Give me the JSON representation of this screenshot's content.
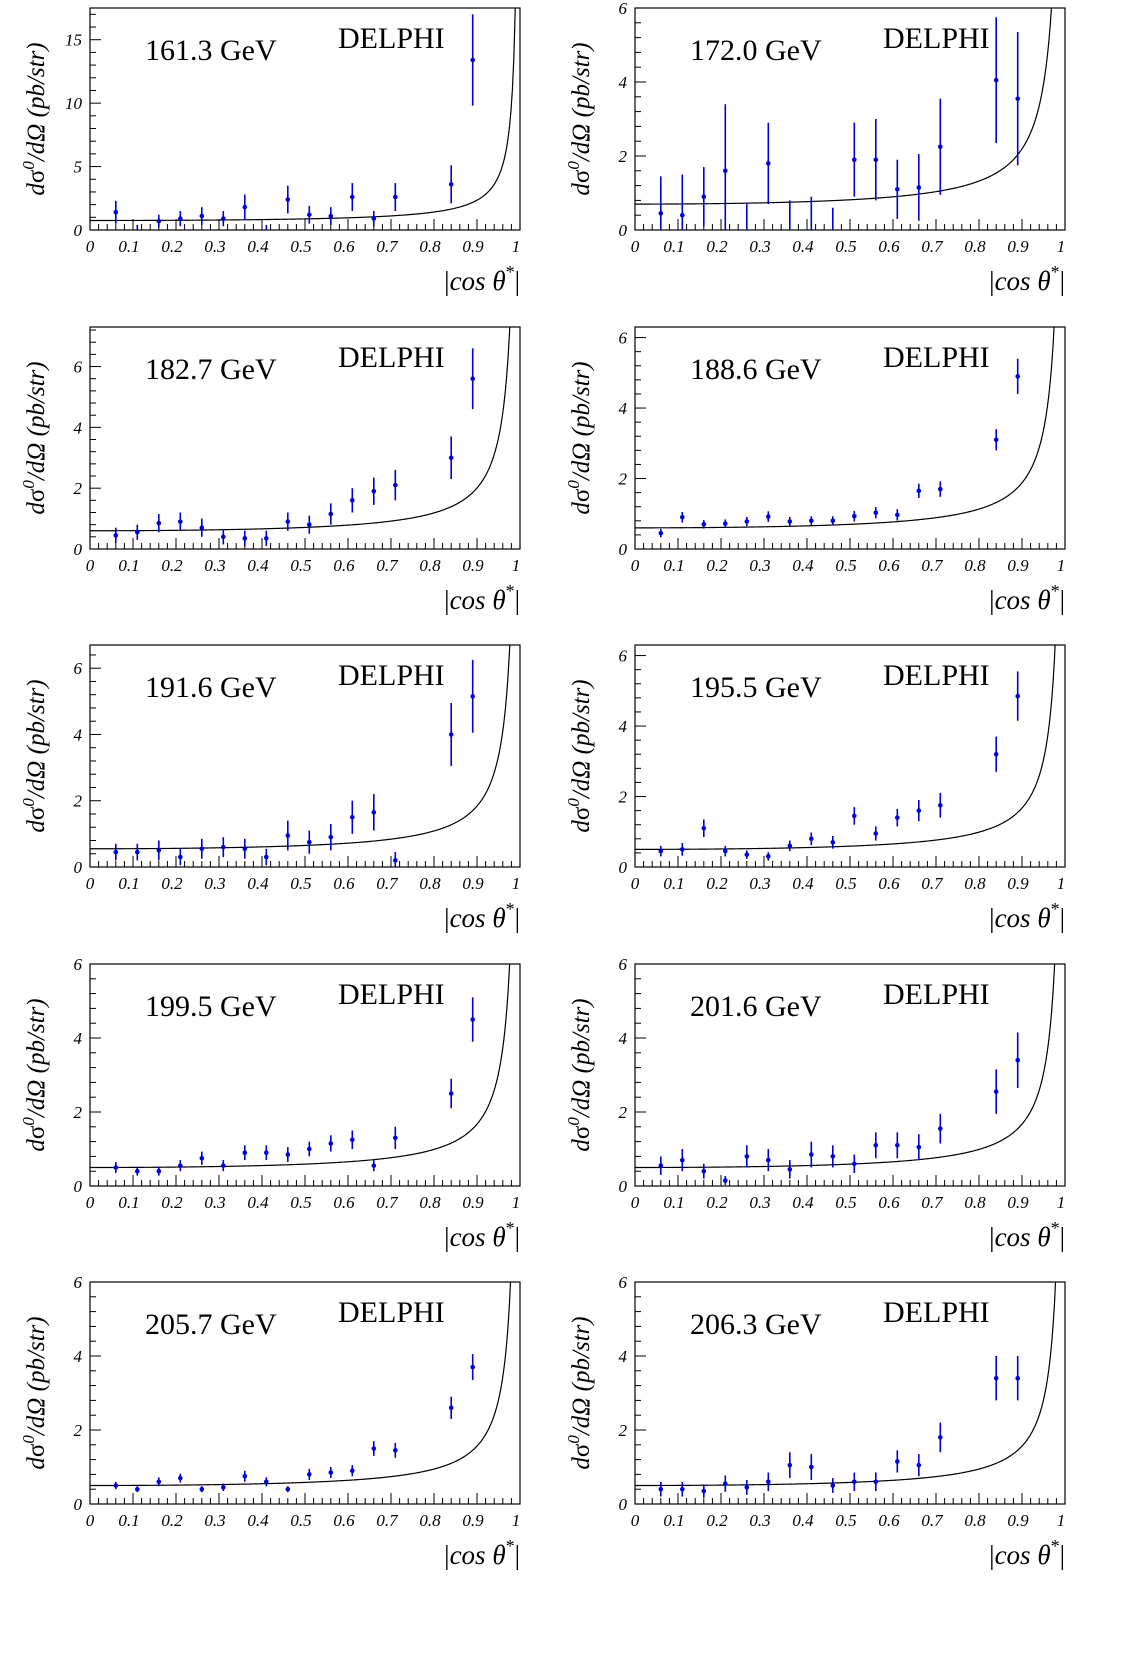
{
  "common": {
    "experiment": "DELPHI",
    "y_label_html": [
      "d",
      "σ",
      "0",
      "/dΩ (pb/str)"
    ],
    "x_label": [
      "|",
      "cos θ",
      "*",
      "|"
    ],
    "x_ticks": [
      "0",
      "0.1",
      "0.2",
      "0.3",
      "0.4",
      "0.5",
      "0.6",
      "0.7",
      "0.8",
      "0.9",
      "1"
    ],
    "point_color": "#0000dd",
    "curve_color": "#000000"
  },
  "chart_data": [
    {
      "type": "scatter",
      "title": "161.3 GeV",
      "label": "DELPHI",
      "xlabel": "|cos θ*|",
      "ylabel": "dσ0/dΩ (pb/str)",
      "xlim": [
        0,
        1
      ],
      "ylim": [
        0,
        17.5
      ],
      "y_ticks": [
        0,
        5,
        10,
        15
      ],
      "curve": {
        "a": 0.75,
        "b": 0.5
      },
      "series": [
        {
          "x": [
            0.06,
            0.11,
            0.16,
            0.21,
            0.26,
            0.31,
            0.36,
            0.41,
            0.46,
            0.51,
            0.56,
            0.61,
            0.66,
            0.71,
            0.84,
            0.89
          ],
          "y": [
            1.4,
            0.0,
            0.7,
            0.9,
            1.1,
            0.9,
            1.8,
            0.0,
            2.4,
            1.2,
            1.1,
            2.6,
            0.9,
            2.6,
            3.6,
            13.4
          ],
          "err": [
            0.9,
            0.4,
            0.5,
            0.6,
            0.7,
            0.6,
            1.0,
            0.4,
            1.1,
            0.7,
            0.7,
            1.1,
            0.6,
            1.1,
            1.5,
            3.6
          ]
        }
      ]
    },
    {
      "type": "scatter",
      "title": "172.0 GeV",
      "label": "DELPHI",
      "xlabel": "|cos θ*|",
      "ylabel": "dσ0/dΩ (pb/str)",
      "xlim": [
        0,
        1
      ],
      "ylim": [
        0,
        6
      ],
      "y_ticks": [
        0,
        2,
        4,
        6
      ],
      "curve": {
        "a": 0.7,
        "b": 0.5
      },
      "series": [
        {
          "x": [
            0.06,
            0.11,
            0.16,
            0.21,
            0.26,
            0.31,
            0.36,
            0.41,
            0.46,
            0.51,
            0.56,
            0.61,
            0.66,
            0.71,
            0.84,
            0.89
          ],
          "y": [
            0.45,
            0.4,
            0.9,
            1.6,
            0.0,
            1.8,
            0.0,
            0.0,
            0.0,
            1.9,
            1.9,
            1.1,
            1.15,
            2.25,
            4.05,
            3.55
          ],
          "err": [
            1.0,
            1.1,
            0.8,
            1.8,
            0.7,
            1.1,
            0.8,
            0.9,
            0.6,
            1.0,
            1.1,
            0.8,
            0.9,
            1.3,
            1.7,
            1.8
          ]
        }
      ]
    },
    {
      "type": "scatter",
      "title": "182.7 GeV",
      "label": "DELPHI",
      "xlabel": "|cos θ*|",
      "ylabel": "dσ0/dΩ (pb/str)",
      "xlim": [
        0,
        1
      ],
      "ylim": [
        0,
        7.3
      ],
      "y_ticks": [
        0,
        2,
        4,
        6
      ],
      "curve": {
        "a": 0.6,
        "b": 0.55
      },
      "series": [
        {
          "x": [
            0.06,
            0.11,
            0.16,
            0.21,
            0.26,
            0.31,
            0.36,
            0.41,
            0.46,
            0.51,
            0.56,
            0.61,
            0.66,
            0.71,
            0.84,
            0.89
          ],
          "y": [
            0.45,
            0.55,
            0.85,
            0.9,
            0.7,
            0.4,
            0.35,
            0.35,
            0.9,
            0.8,
            1.15,
            1.6,
            1.9,
            2.1,
            3.0,
            5.6
          ],
          "err": [
            0.25,
            0.25,
            0.3,
            0.3,
            0.3,
            0.25,
            0.25,
            0.25,
            0.3,
            0.3,
            0.35,
            0.4,
            0.45,
            0.5,
            0.7,
            1.0
          ]
        }
      ]
    },
    {
      "type": "scatter",
      "title": "188.6 GeV",
      "label": "DELPHI",
      "xlabel": "|cos θ*|",
      "ylabel": "dσ0/dΩ (pb/str)",
      "xlim": [
        0,
        1
      ],
      "ylim": [
        0,
        6.3
      ],
      "y_ticks": [
        0,
        2,
        4,
        6
      ],
      "curve": {
        "a": 0.6,
        "b": 0.5
      },
      "series": [
        {
          "x": [
            0.06,
            0.11,
            0.16,
            0.21,
            0.26,
            0.31,
            0.36,
            0.41,
            0.46,
            0.51,
            0.56,
            0.61,
            0.66,
            0.71,
            0.84,
            0.89
          ],
          "y": [
            0.45,
            0.9,
            0.7,
            0.72,
            0.78,
            0.92,
            0.78,
            0.8,
            0.8,
            0.93,
            1.03,
            0.97,
            1.65,
            1.7,
            3.1,
            4.9
          ],
          "err": [
            0.12,
            0.15,
            0.12,
            0.12,
            0.13,
            0.15,
            0.13,
            0.13,
            0.13,
            0.15,
            0.16,
            0.16,
            0.2,
            0.22,
            0.3,
            0.5
          ]
        }
      ]
    },
    {
      "type": "scatter",
      "title": "191.6 GeV",
      "label": "DELPHI",
      "xlabel": "|cos θ*|",
      "ylabel": "dσ0/dΩ (pb/str)",
      "xlim": [
        0,
        1
      ],
      "ylim": [
        0,
        6.7
      ],
      "y_ticks": [
        0,
        2,
        4,
        6
      ],
      "curve": {
        "a": 0.55,
        "b": 0.55
      },
      "series": [
        {
          "x": [
            0.06,
            0.11,
            0.16,
            0.21,
            0.26,
            0.31,
            0.36,
            0.41,
            0.46,
            0.51,
            0.56,
            0.61,
            0.66,
            0.71,
            0.84,
            0.89
          ],
          "y": [
            0.45,
            0.45,
            0.5,
            0.3,
            0.55,
            0.6,
            0.55,
            0.3,
            0.95,
            0.75,
            0.9,
            1.5,
            1.65,
            0.2,
            4.0,
            5.15
          ],
          "err": [
            0.25,
            0.25,
            0.3,
            0.25,
            0.3,
            0.3,
            0.3,
            0.25,
            0.45,
            0.35,
            0.4,
            0.5,
            0.55,
            0.25,
            0.95,
            1.1
          ]
        }
      ]
    },
    {
      "type": "scatter",
      "title": "195.5 GeV",
      "label": "DELPHI",
      "xlabel": "|cos θ*|",
      "ylabel": "dσ0/dΩ (pb/str)",
      "xlim": [
        0,
        1
      ],
      "ylim": [
        0,
        6.3
      ],
      "y_ticks": [
        0,
        2,
        4,
        6
      ],
      "curve": {
        "a": 0.5,
        "b": 0.55
      },
      "series": [
        {
          "x": [
            0.06,
            0.11,
            0.16,
            0.21,
            0.26,
            0.31,
            0.36,
            0.41,
            0.46,
            0.51,
            0.56,
            0.61,
            0.66,
            0.71,
            0.84,
            0.89
          ],
          "y": [
            0.45,
            0.5,
            1.1,
            0.45,
            0.35,
            0.3,
            0.6,
            0.8,
            0.7,
            1.45,
            0.95,
            1.4,
            1.6,
            1.75,
            3.2,
            4.85
          ],
          "err": [
            0.15,
            0.18,
            0.25,
            0.15,
            0.12,
            0.12,
            0.15,
            0.18,
            0.18,
            0.25,
            0.2,
            0.25,
            0.3,
            0.35,
            0.5,
            0.7
          ]
        }
      ]
    },
    {
      "type": "scatter",
      "title": "199.5 GeV",
      "label": "DELPHI",
      "xlabel": "|cos θ*|",
      "ylabel": "dσ0/dΩ (pb/str)",
      "xlim": [
        0,
        1
      ],
      "ylim": [
        0,
        6
      ],
      "y_ticks": [
        0,
        2,
        4,
        6
      ],
      "curve": {
        "a": 0.5,
        "b": 0.55
      },
      "series": [
        {
          "x": [
            0.06,
            0.11,
            0.16,
            0.21,
            0.26,
            0.31,
            0.36,
            0.41,
            0.46,
            0.51,
            0.56,
            0.61,
            0.66,
            0.71,
            0.84,
            0.89
          ],
          "y": [
            0.5,
            0.4,
            0.4,
            0.55,
            0.75,
            0.55,
            0.9,
            0.9,
            0.85,
            1.0,
            1.15,
            1.25,
            0.55,
            1.3,
            2.5,
            4.5
          ],
          "err": [
            0.15,
            0.12,
            0.12,
            0.15,
            0.18,
            0.15,
            0.2,
            0.2,
            0.2,
            0.2,
            0.22,
            0.25,
            0.15,
            0.3,
            0.4,
            0.6
          ]
        }
      ]
    },
    {
      "type": "scatter",
      "title": "201.6 GeV",
      "label": "DELPHI",
      "xlabel": "|cos θ*|",
      "ylabel": "dσ0/dΩ (pb/str)",
      "xlim": [
        0,
        1
      ],
      "ylim": [
        0,
        6
      ],
      "y_ticks": [
        0,
        2,
        4,
        6
      ],
      "curve": {
        "a": 0.5,
        "b": 0.55
      },
      "series": [
        {
          "x": [
            0.06,
            0.11,
            0.16,
            0.21,
            0.26,
            0.31,
            0.36,
            0.41,
            0.46,
            0.51,
            0.56,
            0.61,
            0.66,
            0.71,
            0.84,
            0.89
          ],
          "y": [
            0.55,
            0.7,
            0.4,
            0.15,
            0.8,
            0.7,
            0.45,
            0.85,
            0.8,
            0.6,
            1.1,
            1.1,
            1.05,
            1.55,
            2.55,
            3.4
          ],
          "err": [
            0.25,
            0.3,
            0.2,
            0.12,
            0.3,
            0.3,
            0.25,
            0.35,
            0.3,
            0.25,
            0.35,
            0.35,
            0.35,
            0.4,
            0.6,
            0.75
          ]
        }
      ]
    },
    {
      "type": "scatter",
      "title": "205.7 GeV",
      "label": "DELPHI",
      "xlabel": "|cos θ*|",
      "ylabel": "dσ0/dΩ (pb/str)",
      "xlim": [
        0,
        1
      ],
      "ylim": [
        0,
        6
      ],
      "y_ticks": [
        0,
        2,
        4,
        6
      ],
      "curve": {
        "a": 0.5,
        "b": 0.5
      },
      "series": [
        {
          "x": [
            0.06,
            0.11,
            0.16,
            0.21,
            0.26,
            0.31,
            0.36,
            0.41,
            0.46,
            0.51,
            0.56,
            0.61,
            0.66,
            0.71,
            0.84,
            0.89
          ],
          "y": [
            0.5,
            0.4,
            0.6,
            0.7,
            0.4,
            0.45,
            0.75,
            0.6,
            0.4,
            0.8,
            0.85,
            0.9,
            1.5,
            1.45,
            2.6,
            3.7
          ],
          "err": [
            0.1,
            0.08,
            0.12,
            0.12,
            0.08,
            0.1,
            0.15,
            0.12,
            0.08,
            0.15,
            0.15,
            0.15,
            0.2,
            0.2,
            0.3,
            0.35
          ]
        }
      ]
    },
    {
      "type": "scatter",
      "title": "206.3 GeV",
      "label": "DELPHI",
      "xlabel": "|cos θ*|",
      "ylabel": "dσ0/dΩ (pb/str)",
      "xlim": [
        0,
        1
      ],
      "ylim": [
        0,
        6
      ],
      "y_ticks": [
        0,
        2,
        4,
        6
      ],
      "curve": {
        "a": 0.5,
        "b": 0.5
      },
      "series": [
        {
          "x": [
            0.06,
            0.11,
            0.16,
            0.21,
            0.26,
            0.31,
            0.36,
            0.41,
            0.46,
            0.51,
            0.56,
            0.61,
            0.66,
            0.71,
            0.84,
            0.89
          ],
          "y": [
            0.4,
            0.4,
            0.35,
            0.55,
            0.45,
            0.6,
            1.05,
            1.0,
            0.5,
            0.6,
            0.6,
            1.15,
            1.05,
            1.8,
            3.4,
            3.4
          ],
          "err": [
            0.2,
            0.2,
            0.18,
            0.22,
            0.2,
            0.25,
            0.35,
            0.35,
            0.2,
            0.25,
            0.25,
            0.3,
            0.3,
            0.4,
            0.6,
            0.6
          ]
        }
      ]
    }
  ]
}
